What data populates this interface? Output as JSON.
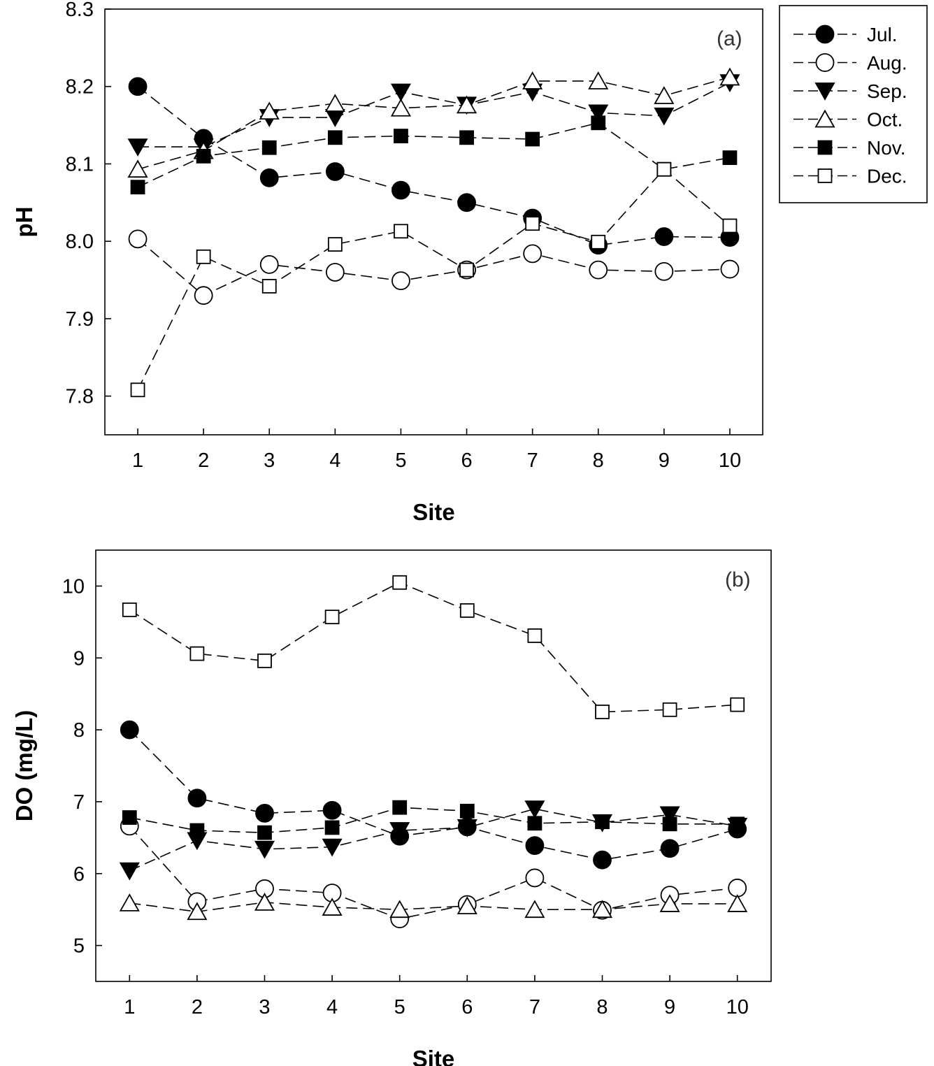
{
  "chart_data": [
    {
      "type": "line",
      "panel_label": "(a)",
      "xlabel": "Site",
      "ylabel": "pH",
      "x": [
        1,
        2,
        3,
        4,
        5,
        6,
        7,
        8,
        9,
        10
      ],
      "x_tick_labels": [
        "1",
        "2",
        "3",
        "4",
        "5",
        "6",
        "7",
        "8",
        "9",
        "10"
      ],
      "xlim": [
        0.5,
        10.5
      ],
      "ylim": [
        7.75,
        8.3
      ],
      "y_ticks": [
        7.8,
        7.9,
        8.0,
        8.1,
        8.2,
        8.3
      ],
      "y_tick_labels": [
        "7.8",
        "7.9",
        "8.0",
        "8.1",
        "8.2",
        "8.3"
      ],
      "grid": false,
      "legend_placement": "outside-top-right",
      "series": [
        {
          "name": "Jul.",
          "marker": "circle-filled",
          "values": [
            8.2,
            8.133,
            8.082,
            8.09,
            8.066,
            8.05,
            8.03,
            7.995,
            8.006,
            8.005
          ]
        },
        {
          "name": "Aug.",
          "marker": "circle-open",
          "values": [
            8.003,
            7.93,
            7.97,
            7.96,
            7.949,
            7.963,
            7.984,
            7.963,
            7.961,
            7.964
          ]
        },
        {
          "name": "Sep.",
          "marker": "triangle-down-filled",
          "values": [
            8.122,
            8.122,
            8.16,
            8.16,
            8.193,
            8.176,
            8.193,
            8.166,
            8.162,
            8.205
          ]
        },
        {
          "name": "Oct.",
          "marker": "triangle-up-open",
          "values": [
            8.093,
            8.117,
            8.168,
            8.178,
            8.172,
            8.176,
            8.207,
            8.207,
            8.188,
            8.212
          ]
        },
        {
          "name": "Nov.",
          "marker": "square-filled",
          "values": [
            8.07,
            8.11,
            8.121,
            8.134,
            8.136,
            8.134,
            8.132,
            8.153,
            8.093,
            8.108
          ]
        },
        {
          "name": "Dec.",
          "marker": "square-open",
          "values": [
            7.808,
            7.98,
            7.942,
            7.996,
            8.013,
            7.963,
            8.023,
            7.999,
            8.093,
            8.02
          ]
        }
      ]
    },
    {
      "type": "line",
      "panel_label": "(b)",
      "xlabel": "Site",
      "ylabel": "DO (mg/L)",
      "x": [
        1,
        2,
        3,
        4,
        5,
        6,
        7,
        8,
        9,
        10
      ],
      "x_tick_labels": [
        "1",
        "2",
        "3",
        "4",
        "5",
        "6",
        "7",
        "8",
        "9",
        "10"
      ],
      "xlim": [
        0.5,
        10.5
      ],
      "ylim": [
        4.5,
        10.5
      ],
      "y_ticks": [
        5,
        6,
        7,
        8,
        9,
        10
      ],
      "y_tick_labels": [
        "5",
        "6",
        "7",
        "8",
        "9",
        "10"
      ],
      "grid": false,
      "series": [
        {
          "name": "Jul.",
          "marker": "circle-filled",
          "values": [
            8.0,
            7.05,
            6.84,
            6.88,
            6.52,
            6.65,
            6.39,
            6.19,
            6.35,
            6.62
          ]
        },
        {
          "name": "Aug.",
          "marker": "circle-open",
          "values": [
            6.66,
            5.61,
            5.79,
            5.73,
            5.37,
            5.57,
            5.94,
            5.49,
            5.7,
            5.8
          ]
        },
        {
          "name": "Sep.",
          "marker": "triangle-down-filled",
          "values": [
            6.04,
            6.46,
            6.34,
            6.37,
            6.6,
            6.64,
            6.9,
            6.71,
            6.82,
            6.66
          ]
        },
        {
          "name": "Oct.",
          "marker": "triangle-up-open",
          "values": [
            5.59,
            5.47,
            5.6,
            5.53,
            5.5,
            5.55,
            5.5,
            5.5,
            5.58,
            5.58
          ]
        },
        {
          "name": "Nov.",
          "marker": "square-filled",
          "values": [
            6.78,
            6.6,
            6.57,
            6.64,
            6.92,
            6.87,
            6.7,
            6.72,
            6.69,
            6.69
          ]
        },
        {
          "name": "Dec.",
          "marker": "square-open",
          "values": [
            9.67,
            9.06,
            8.96,
            9.57,
            10.05,
            9.66,
            9.31,
            8.25,
            8.28,
            8.35
          ]
        }
      ]
    }
  ]
}
